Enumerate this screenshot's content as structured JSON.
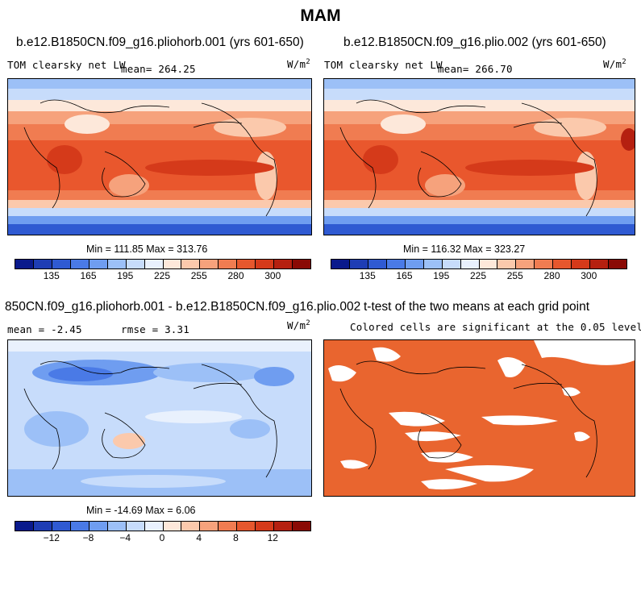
{
  "page_title": "MAM",
  "panels": {
    "top_left": {
      "title": "b.e12.B1850CN.f09_g16.pliohorb.001 (yrs 601-650)",
      "left_label": "TOM clearsky net LW",
      "mean_label": "mean= 264.25",
      "units_base": "W/m",
      "units_exp": "2",
      "minmax": "Min = 111.85 Max = 313.76"
    },
    "top_right": {
      "title": "b.e12.B1850CN.f09_g16.plio.002 (yrs 601-650)",
      "left_label": "TOM clearsky net LW",
      "mean_label": "mean= 266.70",
      "units_base": "W/m",
      "units_exp": "2",
      "minmax": "Min = 116.32 Max = 323.27"
    },
    "bottom_left": {
      "title": "850CN.f09_g16.pliohorb.001 - b.e12.B1850CN.f09_g16.plio.002",
      "mean_label": "mean =   -2.45",
      "rmse_label": "rmse =    3.31",
      "units_base": "W/m",
      "units_exp": "2",
      "minmax": "Min = -14.69 Max =   6.06"
    },
    "bottom_right": {
      "title": "t-test of the two means at each grid point",
      "subtitle": "Colored cells are significant at the 0.05 level"
    }
  },
  "colorbars": {
    "absolute": {
      "colors": [
        "#0a1a8c",
        "#1e3db4",
        "#2f5ad2",
        "#4a7ae6",
        "#6f9df0",
        "#9cc0f7",
        "#c7dcfb",
        "#e9f1fd",
        "#fde8da",
        "#fbc9ac",
        "#f6a27c",
        "#f07c51",
        "#e6572d",
        "#d53a1a",
        "#b52010",
        "#8a0a05"
      ],
      "tick_labels": [
        "135",
        "165",
        "195",
        "225",
        "255",
        "280",
        "300"
      ]
    },
    "difference": {
      "colors": [
        "#0a1a8c",
        "#1e3db4",
        "#2f5ad2",
        "#4a7ae6",
        "#6f9df0",
        "#9cc0f7",
        "#c7dcfb",
        "#e9f1fd",
        "#fde8da",
        "#fbc9ac",
        "#f6a27c",
        "#f07c51",
        "#e6572d",
        "#d53a1a",
        "#b52010",
        "#8a0a05"
      ],
      "tick_labels": [
        "−12",
        "−8",
        "−4",
        "0",
        "4",
        "8",
        "12"
      ]
    }
  },
  "chart_data": [
    {
      "type": "heatmap",
      "title": "b.e12.B1850CN.f09_g16.pliohorb.001 (yrs 601-650)",
      "variable": "TOM clearsky net LW",
      "units": "W/m2",
      "mean": 264.25,
      "min": 111.85,
      "max": 313.76,
      "colorbar_ticks": [
        135,
        165,
        195,
        225,
        255,
        280,
        300
      ]
    },
    {
      "type": "heatmap",
      "title": "b.e12.B1850CN.f09_g16.plio.002 (yrs 601-650)",
      "variable": "TOM clearsky net LW",
      "units": "W/m2",
      "mean": 266.7,
      "min": 116.32,
      "max": 323.27,
      "colorbar_ticks": [
        135,
        165,
        195,
        225,
        255,
        280,
        300
      ]
    },
    {
      "type": "heatmap",
      "title": "850CN.f09_g16.pliohorb.001 - b.e12.B1850CN.f09_g16.plio.002",
      "units": "W/m2",
      "mean": -2.45,
      "rmse": 3.31,
      "min": -14.69,
      "max": 6.06,
      "colorbar_ticks": [
        -12,
        -8,
        -4,
        0,
        4,
        8,
        12
      ]
    },
    {
      "type": "heatmap",
      "title": "t-test of the two means at each grid point",
      "subtitle": "Colored cells are significant at the 0.05 level",
      "significance_level": 0.05
    }
  ]
}
